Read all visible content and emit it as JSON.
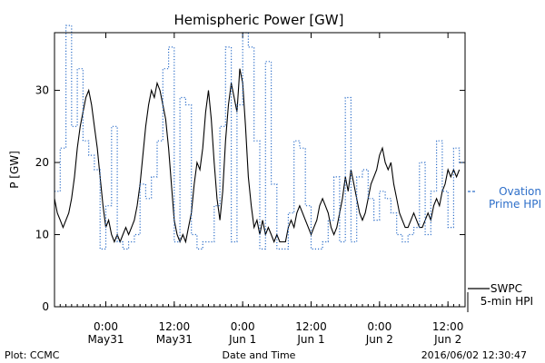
{
  "chart_data": {
    "type": "line",
    "title": "Hemispheric Power [GW]",
    "ylabel": "P [GW]",
    "xlabel": "Date and Time",
    "ylim": [
      0,
      38
    ],
    "xlim": [
      "2016-05-30 15:00",
      "2016-06-02 15:00"
    ],
    "yticks": [
      0,
      10,
      20,
      30
    ],
    "xticks": [
      {
        "t": "2016-05-31 00:00",
        "time": "0:00",
        "date": "May31"
      },
      {
        "t": "2016-05-31 12:00",
        "time": "12:00",
        "date": "May31"
      },
      {
        "t": "2016-06-01 00:00",
        "time": "0:00",
        "date": "Jun 1"
      },
      {
        "t": "2016-06-01 12:00",
        "time": "12:00",
        "date": "Jun 1"
      },
      {
        "t": "2016-06-02 00:00",
        "time": "0:00",
        "date": "Jun 2"
      },
      {
        "t": "2016-06-02 12:00",
        "time": "12:00",
        "date": "Jun 2"
      }
    ],
    "series": [
      {
        "name": "SWPC 5-min HPI",
        "color": "#000000",
        "style": "solid",
        "points": [
          [
            "2016-05-30 15:00",
            15
          ],
          [
            "2016-05-30 15:30",
            13
          ],
          [
            "2016-05-30 16:00",
            12
          ],
          [
            "2016-05-30 16:30",
            11
          ],
          [
            "2016-05-30 17:00",
            12
          ],
          [
            "2016-05-30 17:30",
            13
          ],
          [
            "2016-05-30 18:00",
            15
          ],
          [
            "2016-05-30 18:30",
            18
          ],
          [
            "2016-05-30 19:00",
            22
          ],
          [
            "2016-05-30 19:30",
            25
          ],
          [
            "2016-05-30 20:00",
            27
          ],
          [
            "2016-05-30 20:30",
            29
          ],
          [
            "2016-05-30 21:00",
            30
          ],
          [
            "2016-05-30 21:30",
            28
          ],
          [
            "2016-05-30 22:00",
            25
          ],
          [
            "2016-05-30 22:30",
            22
          ],
          [
            "2016-05-30 23:00",
            18
          ],
          [
            "2016-05-30 23:30",
            14
          ],
          [
            "2016-05-31 00:00",
            11
          ],
          [
            "2016-05-31 00:30",
            12
          ],
          [
            "2016-05-31 01:00",
            10
          ],
          [
            "2016-05-31 01:30",
            9
          ],
          [
            "2016-05-31 02:00",
            10
          ],
          [
            "2016-05-31 02:30",
            9
          ],
          [
            "2016-05-31 03:00",
            10
          ],
          [
            "2016-05-31 03:30",
            11
          ],
          [
            "2016-05-31 04:00",
            10
          ],
          [
            "2016-05-31 04:30",
            11
          ],
          [
            "2016-05-31 05:00",
            12
          ],
          [
            "2016-05-31 05:30",
            14
          ],
          [
            "2016-05-31 06:00",
            17
          ],
          [
            "2016-05-31 06:30",
            21
          ],
          [
            "2016-05-31 07:00",
            25
          ],
          [
            "2016-05-31 07:30",
            28
          ],
          [
            "2016-05-31 08:00",
            30
          ],
          [
            "2016-05-31 08:30",
            29
          ],
          [
            "2016-05-31 09:00",
            31
          ],
          [
            "2016-05-31 09:30",
            30
          ],
          [
            "2016-05-31 10:00",
            28
          ],
          [
            "2016-05-31 10:30",
            26
          ],
          [
            "2016-05-31 11:00",
            22
          ],
          [
            "2016-05-31 11:30",
            17
          ],
          [
            "2016-05-31 12:00",
            12
          ],
          [
            "2016-05-31 12:30",
            10
          ],
          [
            "2016-05-31 13:00",
            9
          ],
          [
            "2016-05-31 13:30",
            10
          ],
          [
            "2016-05-31 14:00",
            9
          ],
          [
            "2016-05-31 14:30",
            11
          ],
          [
            "2016-05-31 15:00",
            13
          ],
          [
            "2016-05-31 15:30",
            17
          ],
          [
            "2016-05-31 16:00",
            20
          ],
          [
            "2016-05-31 16:30",
            19
          ],
          [
            "2016-05-31 17:00",
            22
          ],
          [
            "2016-05-31 17:30",
            27
          ],
          [
            "2016-05-31 18:00",
            30
          ],
          [
            "2016-05-31 18:30",
            26
          ],
          [
            "2016-05-31 19:00",
            20
          ],
          [
            "2016-05-31 19:30",
            15
          ],
          [
            "2016-05-31 20:00",
            12
          ],
          [
            "2016-05-31 20:30",
            16
          ],
          [
            "2016-05-31 21:00",
            23
          ],
          [
            "2016-05-31 21:30",
            28
          ],
          [
            "2016-05-31 22:00",
            31
          ],
          [
            "2016-05-31 22:30",
            29
          ],
          [
            "2016-05-31 23:00",
            27
          ],
          [
            "2016-05-31 23:30",
            33
          ],
          [
            "2016-06-01 00:00",
            31
          ],
          [
            "2016-06-01 00:30",
            25
          ],
          [
            "2016-06-01 01:00",
            18
          ],
          [
            "2016-06-01 01:30",
            14
          ],
          [
            "2016-06-01 02:00",
            11
          ],
          [
            "2016-06-01 02:30",
            12
          ],
          [
            "2016-06-01 03:00",
            10
          ],
          [
            "2016-06-01 03:30",
            12
          ],
          [
            "2016-06-01 04:00",
            10
          ],
          [
            "2016-06-01 04:30",
            11
          ],
          [
            "2016-06-01 05:00",
            10
          ],
          [
            "2016-06-01 05:30",
            9
          ],
          [
            "2016-06-01 06:00",
            10
          ],
          [
            "2016-06-01 06:30",
            9
          ],
          [
            "2016-06-01 07:00",
            9
          ],
          [
            "2016-06-01 07:30",
            9
          ],
          [
            "2016-06-01 08:00",
            11
          ],
          [
            "2016-06-01 08:30",
            12
          ],
          [
            "2016-06-01 09:00",
            11
          ],
          [
            "2016-06-01 09:30",
            13
          ],
          [
            "2016-06-01 10:00",
            14
          ],
          [
            "2016-06-01 10:30",
            13
          ],
          [
            "2016-06-01 11:00",
            12
          ],
          [
            "2016-06-01 11:30",
            11
          ],
          [
            "2016-06-01 12:00",
            10
          ],
          [
            "2016-06-01 12:30",
            11
          ],
          [
            "2016-06-01 13:00",
            12
          ],
          [
            "2016-06-01 13:30",
            14
          ],
          [
            "2016-06-01 14:00",
            15
          ],
          [
            "2016-06-01 14:30",
            14
          ],
          [
            "2016-06-01 15:00",
            13
          ],
          [
            "2016-06-01 15:30",
            11
          ],
          [
            "2016-06-01 16:00",
            10
          ],
          [
            "2016-06-01 16:30",
            11
          ],
          [
            "2016-06-01 17:00",
            13
          ],
          [
            "2016-06-01 17:30",
            15
          ],
          [
            "2016-06-01 18:00",
            18
          ],
          [
            "2016-06-01 18:30",
            16
          ],
          [
            "2016-06-01 19:00",
            19
          ],
          [
            "2016-06-01 19:30",
            17
          ],
          [
            "2016-06-01 20:00",
            15
          ],
          [
            "2016-06-01 20:30",
            13
          ],
          [
            "2016-06-01 21:00",
            12
          ],
          [
            "2016-06-01 21:30",
            13
          ],
          [
            "2016-06-01 22:00",
            15
          ],
          [
            "2016-06-01 22:30",
            17
          ],
          [
            "2016-06-01 23:00",
            18
          ],
          [
            "2016-06-01 23:30",
            19
          ],
          [
            "2016-06-02 00:00",
            21
          ],
          [
            "2016-06-02 00:30",
            22
          ],
          [
            "2016-06-02 01:00",
            20
          ],
          [
            "2016-06-02 01:30",
            19
          ],
          [
            "2016-06-02 02:00",
            20
          ],
          [
            "2016-06-02 02:30",
            17
          ],
          [
            "2016-06-02 03:00",
            15
          ],
          [
            "2016-06-02 03:30",
            13
          ],
          [
            "2016-06-02 04:00",
            12
          ],
          [
            "2016-06-02 04:30",
            11
          ],
          [
            "2016-06-02 05:00",
            11
          ],
          [
            "2016-06-02 05:30",
            12
          ],
          [
            "2016-06-02 06:00",
            13
          ],
          [
            "2016-06-02 06:30",
            12
          ],
          [
            "2016-06-02 07:00",
            11
          ],
          [
            "2016-06-02 07:30",
            11
          ],
          [
            "2016-06-02 08:00",
            12
          ],
          [
            "2016-06-02 08:30",
            13
          ],
          [
            "2016-06-02 09:00",
            12
          ],
          [
            "2016-06-02 09:30",
            14
          ],
          [
            "2016-06-02 10:00",
            15
          ],
          [
            "2016-06-02 10:30",
            14
          ],
          [
            "2016-06-02 11:00",
            16
          ],
          [
            "2016-06-02 11:30",
            17
          ],
          [
            "2016-06-02 12:00",
            19
          ],
          [
            "2016-06-02 12:30",
            18
          ],
          [
            "2016-06-02 13:00",
            19
          ],
          [
            "2016-06-02 13:30",
            18
          ],
          [
            "2016-06-02 14:00",
            19
          ]
        ]
      },
      {
        "name": "Ovation Prime HPI",
        "color": "#2e6fc9",
        "style": "dotted",
        "points": [
          [
            "2016-05-30 15:00",
            16
          ],
          [
            "2016-05-30 16:00",
            22
          ],
          [
            "2016-05-30 17:00",
            39
          ],
          [
            "2016-05-30 18:00",
            25
          ],
          [
            "2016-05-30 19:00",
            33
          ],
          [
            "2016-05-30 20:00",
            23
          ],
          [
            "2016-05-30 21:00",
            21
          ],
          [
            "2016-05-30 22:00",
            19
          ],
          [
            "2016-05-30 23:00",
            8
          ],
          [
            "2016-05-31 00:00",
            14
          ],
          [
            "2016-05-31 01:00",
            25
          ],
          [
            "2016-05-31 02:00",
            9
          ],
          [
            "2016-05-31 03:00",
            8
          ],
          [
            "2016-05-31 04:00",
            9
          ],
          [
            "2016-05-31 05:00",
            10
          ],
          [
            "2016-05-31 06:00",
            17
          ],
          [
            "2016-05-31 07:00",
            15
          ],
          [
            "2016-05-31 08:00",
            18
          ],
          [
            "2016-05-31 09:00",
            23
          ],
          [
            "2016-05-31 10:00",
            33
          ],
          [
            "2016-05-31 11:00",
            36
          ],
          [
            "2016-05-31 12:00",
            9
          ],
          [
            "2016-05-31 13:00",
            29
          ],
          [
            "2016-05-31 14:00",
            28
          ],
          [
            "2016-05-31 15:00",
            10
          ],
          [
            "2016-05-31 16:00",
            8
          ],
          [
            "2016-05-31 17:00",
            9
          ],
          [
            "2016-05-31 18:00",
            9
          ],
          [
            "2016-05-31 19:00",
            14
          ],
          [
            "2016-05-31 20:00",
            25
          ],
          [
            "2016-05-31 21:00",
            36
          ],
          [
            "2016-05-31 22:00",
            9
          ],
          [
            "2016-05-31 23:00",
            28
          ],
          [
            "2016-06-01 00:00",
            38
          ],
          [
            "2016-06-01 01:00",
            36
          ],
          [
            "2016-06-01 02:00",
            23
          ],
          [
            "2016-06-01 03:00",
            8
          ],
          [
            "2016-06-01 04:00",
            34
          ],
          [
            "2016-06-01 05:00",
            17
          ],
          [
            "2016-06-01 06:00",
            8
          ],
          [
            "2016-06-01 07:00",
            8
          ],
          [
            "2016-06-01 08:00",
            13
          ],
          [
            "2016-06-01 09:00",
            23
          ],
          [
            "2016-06-01 10:00",
            22
          ],
          [
            "2016-06-01 11:00",
            14
          ],
          [
            "2016-06-01 12:00",
            8
          ],
          [
            "2016-06-01 13:00",
            8
          ],
          [
            "2016-06-01 14:00",
            9
          ],
          [
            "2016-06-01 15:00",
            12
          ],
          [
            "2016-06-01 16:00",
            18
          ],
          [
            "2016-06-01 17:00",
            9
          ],
          [
            "2016-06-01 18:00",
            29
          ],
          [
            "2016-06-01 19:00",
            9
          ],
          [
            "2016-06-01 20:00",
            18
          ],
          [
            "2016-06-01 21:00",
            19
          ],
          [
            "2016-06-01 22:00",
            15
          ],
          [
            "2016-06-01 23:00",
            12
          ],
          [
            "2016-06-02 00:00",
            16
          ],
          [
            "2016-06-02 01:00",
            15
          ],
          [
            "2016-06-02 02:00",
            13
          ],
          [
            "2016-06-02 03:00",
            10
          ],
          [
            "2016-06-02 04:00",
            9
          ],
          [
            "2016-06-02 05:00",
            10
          ],
          [
            "2016-06-02 06:00",
            11
          ],
          [
            "2016-06-02 07:00",
            20
          ],
          [
            "2016-06-02 08:00",
            10
          ],
          [
            "2016-06-02 09:00",
            16
          ],
          [
            "2016-06-02 10:00",
            23
          ],
          [
            "2016-06-02 11:00",
            16
          ],
          [
            "2016-06-02 12:00",
            11
          ],
          [
            "2016-06-02 13:00",
            22
          ],
          [
            "2016-06-02 14:00",
            20
          ]
        ]
      }
    ],
    "legend": {
      "placement": "right",
      "entries": [
        {
          "label_line1": "Ovation",
          "label_line2": "Prime HPI",
          "color": "#2e6fc9"
        },
        {
          "label_line1": "SWPC",
          "label_line2": "5-min HPI",
          "color": "#000000"
        }
      ]
    }
  },
  "footer": {
    "left": "Plot: CCMC",
    "center": "Date and Time",
    "right": "2016/06/02 12:30:47"
  }
}
